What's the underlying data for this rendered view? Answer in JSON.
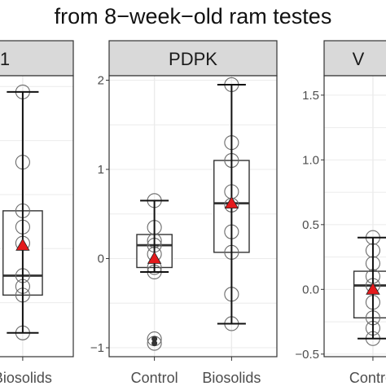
{
  "figure": {
    "title": "from 8−week−old ram testes"
  },
  "colors": {
    "strip_fill": "#d9d9d9",
    "strip_border": "#333333",
    "panel_border": "#333333",
    "grid": "#ebebeb",
    "box": "#333333",
    "point": "#6b6b6b",
    "mean_marker": "#e41a1c"
  },
  "chart_data": [
    {
      "type": "box",
      "panel": "left-cropped",
      "strip_label": "1",
      "categories": [
        "Control",
        "Biosolids"
      ],
      "x_tick_labels": [
        "",
        "Biosolids"
      ],
      "y_tick_labels": [],
      "ylim": [
        -0.5,
        2.1
      ],
      "grid": true,
      "boxes": [
        {
          "category": "Biosolids",
          "q1": 0.07,
          "median": 0.25,
          "q3": 0.85,
          "whisker_low": -0.28,
          "whisker_high": 1.95,
          "mean": 0.53
        }
      ],
      "points": [
        {
          "category": "Biosolids",
          "values": [
            1.95,
            1.3,
            0.85,
            0.7,
            0.55,
            0.25,
            0.15,
            0.07,
            -0.28
          ]
        }
      ]
    },
    {
      "type": "box",
      "panel": "middle",
      "strip_label": "PDPK",
      "categories": [
        "Control",
        "Biosolids"
      ],
      "x_tick_labels": [
        "Control",
        "Biosolids"
      ],
      "y_tick_labels": [
        "2",
        "1",
        "0",
        "−1"
      ],
      "y_ticks": [
        2,
        1,
        0,
        -1
      ],
      "ylim": [
        -1.1,
        2.05
      ],
      "grid": true,
      "boxes": [
        {
          "category": "Control",
          "q1": -0.1,
          "median": 0.15,
          "q3": 0.27,
          "whisker_low": -0.15,
          "whisker_high": 0.65,
          "mean": 0.0
        },
        {
          "category": "Biosolids",
          "q1": 0.07,
          "median": 0.62,
          "q3": 1.1,
          "whisker_low": -0.73,
          "whisker_high": 1.95,
          "mean": 0.62
        }
      ],
      "points": [
        {
          "category": "Control",
          "values": [
            0.65,
            0.35,
            0.2,
            0.15,
            0.05,
            -0.1,
            -0.15,
            -0.9,
            -0.95
          ]
        },
        {
          "category": "Biosolids",
          "values": [
            1.95,
            1.3,
            1.1,
            0.75,
            0.6,
            0.3,
            0.07,
            -0.4,
            -0.73
          ]
        }
      ],
      "outliers": [
        {
          "category": "Control",
          "values": [
            -0.9,
            -0.95
          ]
        }
      ]
    },
    {
      "type": "box",
      "panel": "right-cropped",
      "strip_label": "V",
      "categories": [
        "Control",
        "Biosolids"
      ],
      "x_tick_labels": [
        "Control",
        ""
      ],
      "y_tick_labels": [
        "1.5",
        "1.0",
        "0.5",
        "0.0",
        "−0.5"
      ],
      "y_ticks": [
        1.5,
        1.0,
        0.5,
        0.0,
        -0.5
      ],
      "ylim": [
        -0.52,
        1.65
      ],
      "grid": true,
      "boxes": [
        {
          "category": "Control",
          "q1": -0.22,
          "median": 0.03,
          "q3": 0.14,
          "whisker_low": -0.38,
          "whisker_high": 0.4,
          "mean": 0.0
        }
      ],
      "points": [
        {
          "category": "Control",
          "values": [
            0.4,
            0.3,
            0.2,
            0.1,
            0.03,
            -0.1,
            -0.22,
            -0.3,
            -0.38
          ]
        }
      ]
    }
  ]
}
